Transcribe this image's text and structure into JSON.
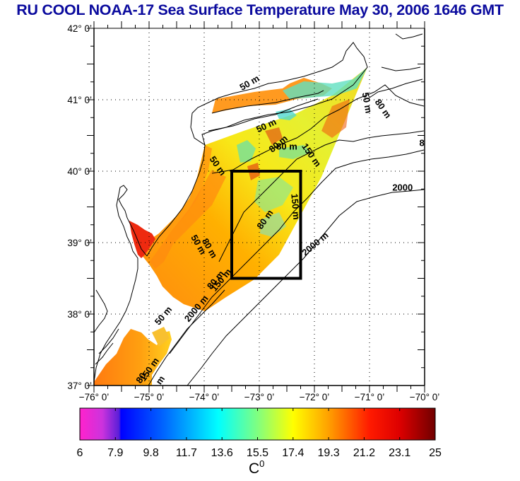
{
  "title": "RU COOL  NOAA-17 Sea Surface Temperature May 30, 2006 1646 GMT",
  "chart_data": {
    "type": "heatmap",
    "title": "RU COOL  NOAA-17 Sea Surface Temperature May 30, 2006 1646 GMT",
    "xlabel": "",
    "ylabel": "",
    "xlim": [
      -76,
      -70
    ],
    "ylim": [
      37,
      42
    ],
    "x_ticks": [
      {
        "value": -76,
        "label": "−76° 0’"
      },
      {
        "value": -75,
        "label": "−75° 0’"
      },
      {
        "value": -74,
        "label": "−74° 0’"
      },
      {
        "value": -73,
        "label": "−73° 0’"
      },
      {
        "value": -72,
        "label": "−72° 0’"
      },
      {
        "value": -71,
        "label": "−71° 0’"
      },
      {
        "value": -70,
        "label": "−70° 0’"
      }
    ],
    "y_ticks": [
      {
        "value": 42,
        "label": "42° 0’"
      },
      {
        "value": 41,
        "label": "41° 0’"
      },
      {
        "value": 40,
        "label": "40° 0’"
      },
      {
        "value": 39,
        "label": "39° 0’"
      },
      {
        "value": 38,
        "label": "38° 0’"
      },
      {
        "value": 37,
        "label": "37° 0’"
      }
    ],
    "grid": "dotted",
    "highlight_box": {
      "lon_min": -73.5,
      "lon_max": -72.25,
      "lat_min": 38.5,
      "lat_max": 40.0
    },
    "contour_labels": [
      {
        "text": "50 m",
        "lon": -73.15,
        "lat": 41.2,
        "angle": -30
      },
      {
        "text": "50 m",
        "lon": -72.85,
        "lat": 40.6,
        "angle": -25
      },
      {
        "text": "50 m",
        "lon": -73.8,
        "lat": 40.05,
        "angle": 55
      },
      {
        "text": "80 m",
        "lon": -72.62,
        "lat": 40.35,
        "angle": -40
      },
      {
        "text": "80 m",
        "lon": -72.5,
        "lat": 40.3,
        "angle": 0
      },
      {
        "text": "150 m",
        "lon": -72.1,
        "lat": 40.2,
        "angle": 55
      },
      {
        "text": "50 m",
        "lon": -71.1,
        "lat": 40.95,
        "angle": 80
      },
      {
        "text": "80 m",
        "lon": -70.8,
        "lat": 40.85,
        "angle": 55
      },
      {
        "text": "8",
        "lon": -70.05,
        "lat": 40.35,
        "angle": 0
      },
      {
        "text": "2000",
        "lon": -70.4,
        "lat": 39.73,
        "angle": 0
      },
      {
        "text": "80 m",
        "lon": -72.85,
        "lat": 39.3,
        "angle": -55
      },
      {
        "text": "150 m",
        "lon": -72.4,
        "lat": 39.5,
        "angle": 85
      },
      {
        "text": "2000 m",
        "lon": -71.95,
        "lat": 38.95,
        "angle": -40
      },
      {
        "text": "50 m",
        "lon": -74.15,
        "lat": 38.95,
        "angle": 60
      },
      {
        "text": "80 m",
        "lon": -73.95,
        "lat": 38.9,
        "angle": 60
      },
      {
        "text": "80 m",
        "lon": -73.75,
        "lat": 38.45,
        "angle": -50
      },
      {
        "text": "150 m",
        "lon": -73.65,
        "lat": 38.45,
        "angle": -50
      },
      {
        "text": "50 m",
        "lon": -74.7,
        "lat": 37.95,
        "angle": -50
      },
      {
        "text": "2000 m",
        "lon": -74.1,
        "lat": 38.05,
        "angle": -50
      },
      {
        "text": "150 m",
        "lon": -74.95,
        "lat": 37.2,
        "angle": -55
      },
      {
        "text": "80",
        "lon": -75.1,
        "lat": 37.08,
        "angle": -55
      },
      {
        "text": "m",
        "lon": -74.75,
        "lat": 37.05,
        "angle": -55
      }
    ]
  },
  "colorbar": {
    "min": 6,
    "max": 25,
    "ticks": [
      "6",
      "7.9",
      "9.8",
      "11.7",
      "13.6",
      "15.5",
      "17.4",
      "19.3",
      "21.2",
      "23.1",
      "25"
    ],
    "unit_base": "C",
    "unit_sup": "0",
    "stops": [
      {
        "value": 6,
        "color": "#ff22cc"
      },
      {
        "value": 7.2,
        "color": "#cc33dd"
      },
      {
        "value": 8.1,
        "color": "#5a1fd8"
      },
      {
        "value": 8.2,
        "color": "#0000ff"
      },
      {
        "value": 10.5,
        "color": "#0066ff"
      },
      {
        "value": 13.4,
        "color": "#00ffff"
      },
      {
        "value": 15.5,
        "color": "#80ff80"
      },
      {
        "value": 17.4,
        "color": "#ffff00"
      },
      {
        "value": 19.3,
        "color": "#ffa000"
      },
      {
        "value": 21.5,
        "color": "#ff1a00"
      },
      {
        "value": 23.1,
        "color": "#dd0000"
      },
      {
        "value": 25,
        "color": "#700000"
      }
    ]
  }
}
